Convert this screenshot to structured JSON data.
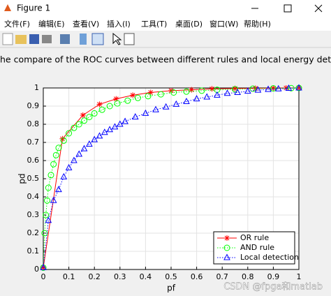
{
  "window": {
    "title": "Figure 1",
    "menu": [
      "文件(F)",
      "编辑(E)",
      "查看(V)",
      "插入(I)",
      "工具(T)",
      "桌面(D)",
      "窗口(W)",
      "帮助(H)"
    ],
    "watermark": "CSDN @fpga和matlab"
  },
  "chart_data": {
    "type": "line",
    "title": "he compare of the ROC curves between different rules and local energy detection,SNR",
    "xlabel": "pf",
    "ylabel": "pd",
    "xlim": [
      0,
      1
    ],
    "ylim": [
      0,
      1
    ],
    "xticks": [
      0,
      0.1,
      0.2,
      0.3,
      0.4,
      0.5,
      0.6,
      0.7,
      0.8,
      0.9,
      1
    ],
    "yticks": [
      0,
      0.1,
      0.2,
      0.3,
      0.4,
      0.5,
      0.6,
      0.7,
      0.8,
      0.9,
      1
    ],
    "grid": true,
    "legend": "southeast",
    "series": [
      {
        "name": "OR rule",
        "color": "#ff0000",
        "marker": "star",
        "line": "solid",
        "x": [
          0,
          0.075,
          0.155,
          0.22,
          0.285,
          0.35,
          0.42,
          0.5,
          0.58,
          0.66,
          0.75,
          0.83,
          0.9,
          0.95,
          1
        ],
        "values": [
          0.01,
          0.72,
          0.85,
          0.91,
          0.94,
          0.96,
          0.975,
          0.985,
          0.99,
          0.995,
          0.997,
          0.998,
          0.999,
          1,
          1
        ]
      },
      {
        "name": "AND rule",
        "color": "#00ff00",
        "marker": "circle",
        "line": "dotted",
        "x": [
          0,
          0.005,
          0.01,
          0.015,
          0.02,
          0.03,
          0.04,
          0.05,
          0.06,
          0.08,
          0.1,
          0.12,
          0.14,
          0.16,
          0.18,
          0.2,
          0.23,
          0.26,
          0.29,
          0.33,
          0.37,
          0.41,
          0.46,
          0.51,
          0.56,
          0.62,
          0.68,
          0.75,
          0.82,
          0.9,
          0.97,
          1
        ],
        "values": [
          0.01,
          0.2,
          0.3,
          0.38,
          0.45,
          0.52,
          0.58,
          0.63,
          0.67,
          0.71,
          0.75,
          0.78,
          0.8,
          0.82,
          0.84,
          0.86,
          0.88,
          0.9,
          0.915,
          0.93,
          0.945,
          0.955,
          0.965,
          0.975,
          0.98,
          0.985,
          0.99,
          0.993,
          0.996,
          0.998,
          0.999,
          1
        ]
      },
      {
        "name": "Local detection",
        "color": "#0000ff",
        "marker": "triangle",
        "line": "dotted",
        "x": [
          0,
          0.02,
          0.04,
          0.06,
          0.08,
          0.1,
          0.12,
          0.14,
          0.16,
          0.18,
          0.2,
          0.22,
          0.24,
          0.26,
          0.28,
          0.3,
          0.32,
          0.36,
          0.4,
          0.44,
          0.48,
          0.52,
          0.56,
          0.6,
          0.64,
          0.68,
          0.72,
          0.76,
          0.8,
          0.84,
          0.88,
          0.92,
          0.96,
          1
        ],
        "values": [
          0.01,
          0.27,
          0.38,
          0.44,
          0.51,
          0.56,
          0.6,
          0.635,
          0.665,
          0.69,
          0.715,
          0.735,
          0.755,
          0.77,
          0.785,
          0.8,
          0.815,
          0.84,
          0.86,
          0.88,
          0.895,
          0.91,
          0.925,
          0.94,
          0.95,
          0.96,
          0.97,
          0.975,
          0.982,
          0.988,
          0.992,
          0.995,
          0.998,
          1
        ]
      }
    ]
  }
}
